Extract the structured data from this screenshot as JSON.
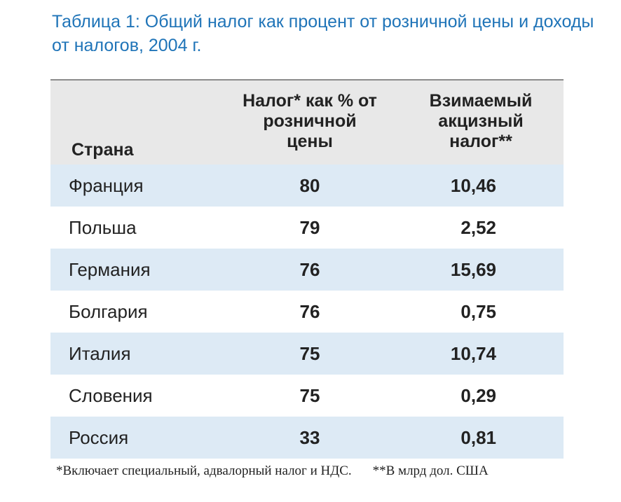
{
  "title": "Таблица 1: Общий налог как процент от розничной цены и доходы от налогов, 2004 г.",
  "headers": {
    "country": "Страна",
    "pct": "Налог* как % от розничной цены",
    "excise": "Взимаемый акцизный налог**"
  },
  "rows": [
    {
      "country": "Франция",
      "pct": "80",
      "excise": "10,46"
    },
    {
      "country": "Польша",
      "pct": "79",
      "excise": "2,52"
    },
    {
      "country": "Германия",
      "pct": "76",
      "excise": "15,69"
    },
    {
      "country": "Болгария",
      "pct": "76",
      "excise": "0,75"
    },
    {
      "country": "Италия",
      "pct": "75",
      "excise": "10,74"
    },
    {
      "country": "Словения",
      "pct": "75",
      "excise": "0,29"
    },
    {
      "country": "Россия",
      "pct": "33",
      "excise": "0,81"
    }
  ],
  "footnotes": {
    "note1": "*Включает специальный, адвалорный налог и НДС.",
    "note2": "**В млрд дол. США"
  },
  "colors": {
    "title": "#1f74b8",
    "header_bg": "#e8e8e8",
    "row_shade": "#ddeaf5"
  }
}
